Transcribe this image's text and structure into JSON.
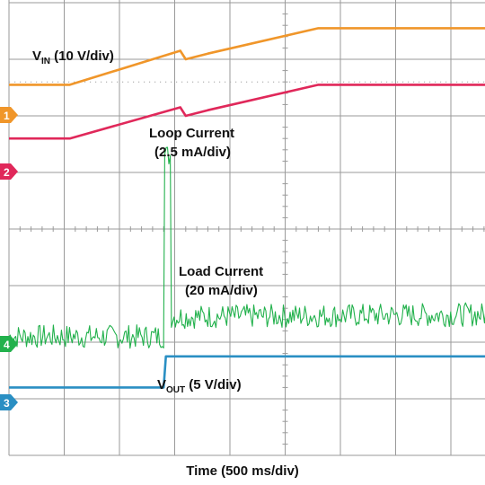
{
  "chart_data": {
    "type": "line",
    "title": "",
    "xlabel": "Time (500 ms/div)",
    "ylabel": "",
    "x_unit_per_div": "500 ms",
    "x_divisions": 10,
    "x_range_ms": [
      0,
      5000
    ],
    "grid": true,
    "y_divisions": 8,
    "background": "#ffffff",
    "grid_color": "#9a9a9a",
    "series": [
      {
        "id": "vin",
        "channel": "1",
        "color": "#f0962a",
        "label_main": "V",
        "label_sub": "IN",
        "label_rest": " (10 V/div)",
        "trace_div": [
          [
            0,
            6.55
          ],
          [
            550,
            6.55
          ],
          [
            1550,
            7.15
          ],
          [
            1600,
            7.0
          ],
          [
            1800,
            7.1
          ],
          [
            2800,
            7.55
          ],
          [
            5000,
            7.55
          ]
        ]
      },
      {
        "id": "loop",
        "channel": "2",
        "color": "#e0285a",
        "label_line1": "Loop Current",
        "label_line2": "(2.5 mA/div)",
        "trace_div": [
          [
            0,
            5.6
          ],
          [
            550,
            5.6
          ],
          [
            1550,
            6.15
          ],
          [
            1600,
            6.0
          ],
          [
            1800,
            6.1
          ],
          [
            2800,
            6.55
          ],
          [
            5000,
            6.55
          ]
        ]
      },
      {
        "id": "load",
        "channel": "4",
        "color": "#22b14c",
        "label_line1": "Load Current",
        "label_line2": "(20 mA/div)",
        "trace_div": [
          [
            0,
            2.1
          ],
          [
            1400,
            2.1
          ],
          [
            1410,
            5.3
          ],
          [
            1460,
            5.3
          ],
          [
            1470,
            2.45
          ],
          [
            5000,
            2.5
          ]
        ],
        "noisy": true
      },
      {
        "id": "vout",
        "channel": "3",
        "color": "#2a8fc3",
        "label_main": "V",
        "label_sub": "OUT",
        "label_rest": " (5 V/div)",
        "trace_div": [
          [
            0,
            1.2
          ],
          [
            1400,
            1.2
          ],
          [
            1420,
            1.75
          ],
          [
            5000,
            1.75
          ]
        ]
      }
    ]
  }
}
